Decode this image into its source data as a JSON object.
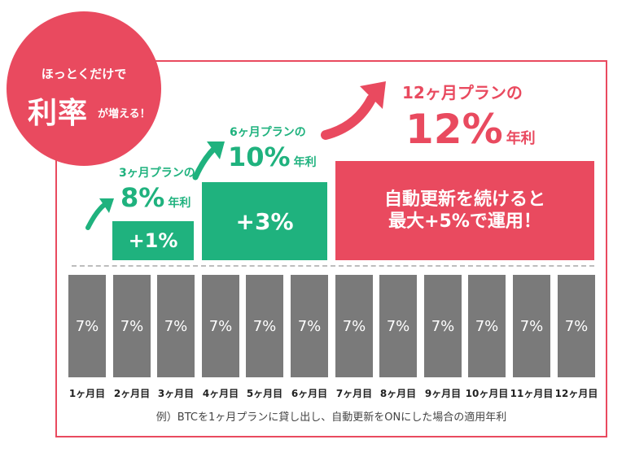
{
  "badge": {
    "line1": "ほっとくだけで",
    "line2": "利率",
    "line3": "が増える！"
  },
  "steps": [
    {
      "plan": "3ヶ月プランの",
      "rate": "8%",
      "unit": "年利",
      "box": "+1%"
    },
    {
      "plan": "6ヶ月プランの",
      "rate": "10%",
      "unit": "年利",
      "box": "+3%"
    },
    {
      "plan": "12ヶ月プランの",
      "rate": "12%",
      "unit": "年利",
      "box_line1": "自動更新を続けると",
      "box_line2": "最大+5%で運用！"
    }
  ],
  "bars": [
    {
      "month": "1ヶ月目",
      "value": "7%"
    },
    {
      "month": "2ヶ月目",
      "value": "7%"
    },
    {
      "month": "3ヶ月目",
      "value": "7%"
    },
    {
      "month": "4ヶ月目",
      "value": "7%"
    },
    {
      "month": "5ヶ月目",
      "value": "7%"
    },
    {
      "month": "6ヶ月目",
      "value": "7%"
    },
    {
      "month": "7ヶ月目",
      "value": "7%"
    },
    {
      "month": "8ヶ月目",
      "value": "7%"
    },
    {
      "month": "9ヶ月目",
      "value": "7%"
    },
    {
      "month": "10ヶ月目",
      "value": "7%"
    },
    {
      "month": "11ヶ月目",
      "value": "7%"
    },
    {
      "month": "12ヶ月目",
      "value": "7%"
    }
  ],
  "note": "例）BTCを1ヶ月プランに貸し出し、自動更新をONにした場合の適用年利",
  "colors": {
    "accent_red": "#e94a5f",
    "accent_green": "#1fb27e",
    "bar_gray": "#7a7a7a"
  }
}
